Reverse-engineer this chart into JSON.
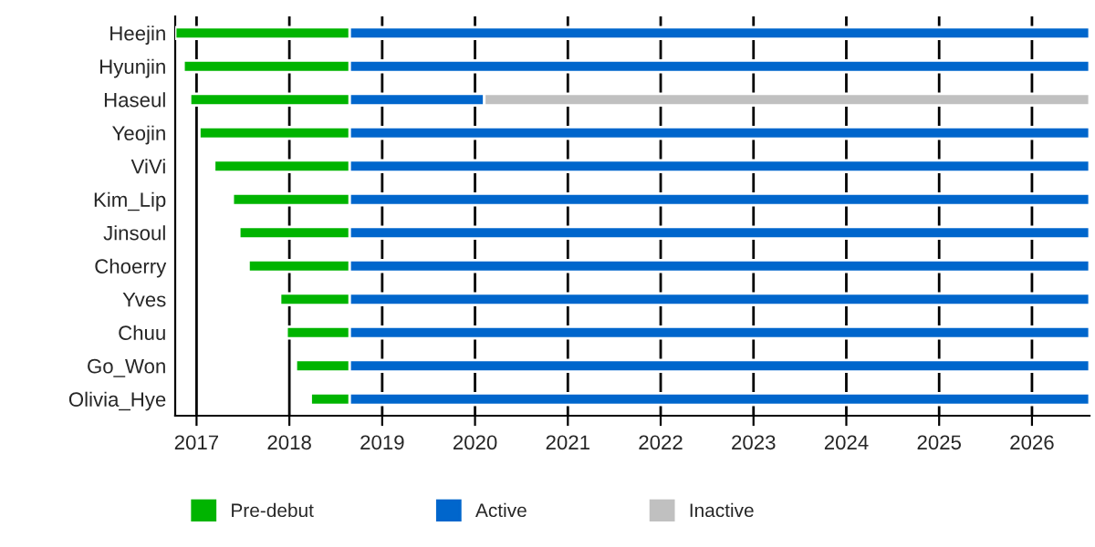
{
  "chart_data": {
    "type": "bar",
    "orientation": "horizontal",
    "categories": [
      "Heejin",
      "Hyunjin",
      "Haseul",
      "Yeojin",
      "ViVi",
      "Kim_Lip",
      "Jinsoul",
      "Choerry",
      "Yves",
      "Chuu",
      "Go_Won",
      "Olivia_Hye"
    ],
    "series": [
      {
        "name": "Pre-debut",
        "color": "#00b400",
        "base": [
          2016.77,
          2016.86,
          2016.93,
          2017.03,
          2017.19,
          2017.39,
          2017.46,
          2017.56,
          2017.9,
          2017.97,
          2018.07,
          2018.23
        ],
        "values": [
          1.88,
          1.79,
          1.72,
          1.62,
          1.46,
          1.26,
          1.19,
          1.09,
          0.75,
          0.68,
          0.58,
          0.42
        ]
      },
      {
        "name": "Active",
        "color": "#0066cc",
        "base": [
          2018.65,
          2018.65,
          2018.65,
          2018.65,
          2018.65,
          2018.65,
          2018.65,
          2018.65,
          2018.65,
          2018.65,
          2018.65,
          2018.65
        ],
        "values": [
          7.97,
          7.97,
          1.45,
          7.97,
          7.97,
          7.97,
          7.97,
          7.97,
          7.97,
          7.97,
          7.97,
          7.97
        ]
      },
      {
        "name": "Inactive",
        "color": "#c0c0c0",
        "base": [
          null,
          null,
          2020.1,
          null,
          null,
          null,
          null,
          null,
          null,
          null,
          null,
          null
        ],
        "values": [
          null,
          null,
          6.52,
          null,
          null,
          null,
          null,
          null,
          null,
          null,
          null,
          null
        ]
      }
    ],
    "xlim": [
      2016.77,
      2026.62
    ],
    "xticks": [
      2017,
      2018,
      2019,
      2020,
      2021,
      2022,
      2023,
      2024,
      2025,
      2026
    ],
    "grid": "x",
    "legend": "bottom"
  }
}
